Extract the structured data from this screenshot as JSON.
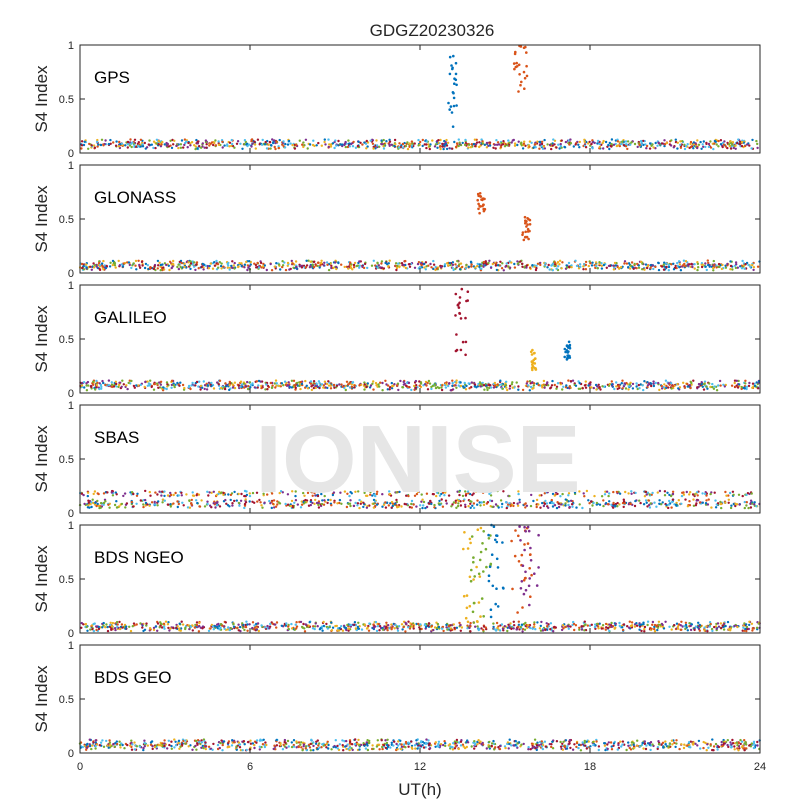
{
  "chart_data": {
    "type": "scatter",
    "title": "GDGZ20230326",
    "xlabel": "UT(h)",
    "ylabel": "S4 Index",
    "xlim": [
      0,
      24
    ],
    "ylim": [
      0,
      1
    ],
    "x_ticks": [
      "0",
      "6",
      "12",
      "18",
      "24"
    ],
    "y_ticks": [
      "0",
      "0.5",
      "1"
    ],
    "watermark": "IONISE",
    "series_colors": [
      "#0072BD",
      "#D95319",
      "#EDB120",
      "#7E2F8E",
      "#77AC30",
      "#4DBEEE",
      "#A2142F"
    ],
    "panels": [
      {
        "label": "GPS",
        "baseline": 0.08,
        "spikes": [
          {
            "t_start": 13.0,
            "t_end": 13.3,
            "y_min": 0.22,
            "y_max": 1.0,
            "color": "#0072BD"
          },
          {
            "t_start": 15.3,
            "t_end": 15.8,
            "y_min": 0.5,
            "y_max": 1.0,
            "color": "#D95319"
          }
        ]
      },
      {
        "label": "GLONASS",
        "baseline": 0.07,
        "spikes": [
          {
            "t_start": 14.0,
            "t_end": 14.3,
            "y_min": 0.55,
            "y_max": 0.75,
            "color": "#D95319"
          },
          {
            "t_start": 15.6,
            "t_end": 15.9,
            "y_min": 0.3,
            "y_max": 0.53,
            "color": "#D95319"
          }
        ]
      },
      {
        "label": "GALILEO",
        "baseline": 0.07,
        "spikes": [
          {
            "t_start": 13.2,
            "t_end": 13.7,
            "y_min": 0.35,
            "y_max": 0.98,
            "color": "#A2142F"
          },
          {
            "t_start": 15.9,
            "t_end": 16.1,
            "y_min": 0.2,
            "y_max": 0.4,
            "color": "#EDB120"
          },
          {
            "t_start": 17.1,
            "t_end": 17.3,
            "y_min": 0.3,
            "y_max": 0.5,
            "color": "#0072BD"
          }
        ]
      },
      {
        "label": "SBAS",
        "baseline": 0.1,
        "bands": [
          0.07,
          0.1,
          0.18
        ],
        "spikes": []
      },
      {
        "label": "BDS NGEO",
        "baseline": 0.06,
        "spikes": [
          {
            "t_start": 13.5,
            "t_end": 14.2,
            "y_min": 0.1,
            "y_max": 1.0,
            "color": "#EDB120"
          },
          {
            "t_start": 13.8,
            "t_end": 14.5,
            "y_min": 0.1,
            "y_max": 1.0,
            "color": "#77AC30"
          },
          {
            "t_start": 14.4,
            "t_end": 15.1,
            "y_min": 0.1,
            "y_max": 1.0,
            "color": "#0072BD"
          },
          {
            "t_start": 15.2,
            "t_end": 16.0,
            "y_min": 0.1,
            "y_max": 1.0,
            "color": "#D95319"
          },
          {
            "t_start": 15.5,
            "t_end": 16.2,
            "y_min": 0.1,
            "y_max": 1.0,
            "color": "#7E2F8E"
          }
        ]
      },
      {
        "label": "BDS GEO",
        "baseline": 0.08,
        "bands": [
          0.05,
          0.08,
          0.1
        ],
        "spikes": []
      }
    ]
  }
}
